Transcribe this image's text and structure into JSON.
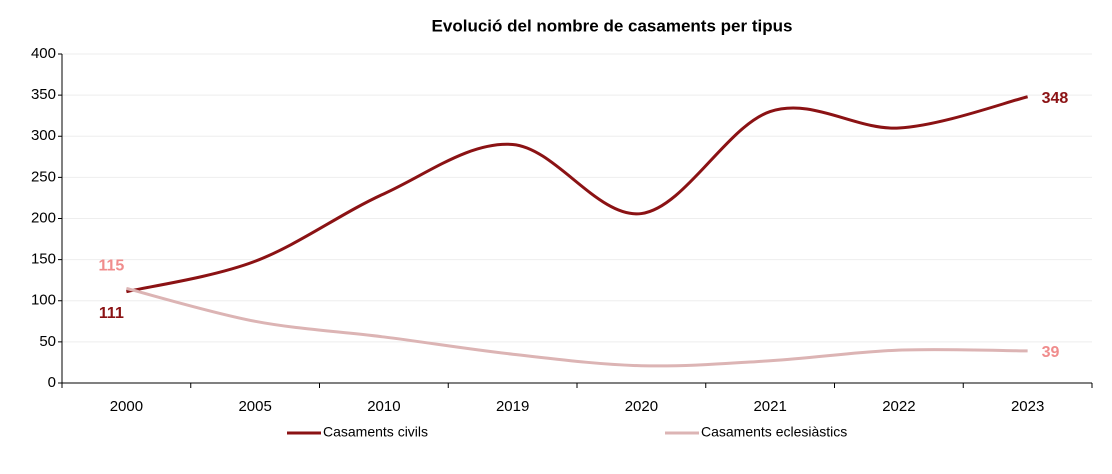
{
  "chart_data": {
    "type": "line",
    "title": "Evolució del nombre de casaments per tipus",
    "categories": [
      "2000",
      "2005",
      "2010",
      "2019",
      "2020",
      "2021",
      "2022",
      "2023"
    ],
    "series": [
      {
        "name": "Casaments civils",
        "color": "#8b1214",
        "label_color": "#8b1214",
        "values": [
          111,
          148,
          230,
          290,
          206,
          330,
          310,
          348
        ]
      },
      {
        "name": "Casaments eclesiàstics",
        "color": "#dcb4b4",
        "label_color": "#f08c8c",
        "values": [
          115,
          75,
          56,
          35,
          21,
          27,
          40,
          39
        ]
      }
    ],
    "ylim": [
      0,
      400
    ],
    "yticks": [
      0,
      50,
      100,
      150,
      200,
      250,
      300,
      350,
      400
    ],
    "grid": true,
    "legend": "bottom"
  }
}
